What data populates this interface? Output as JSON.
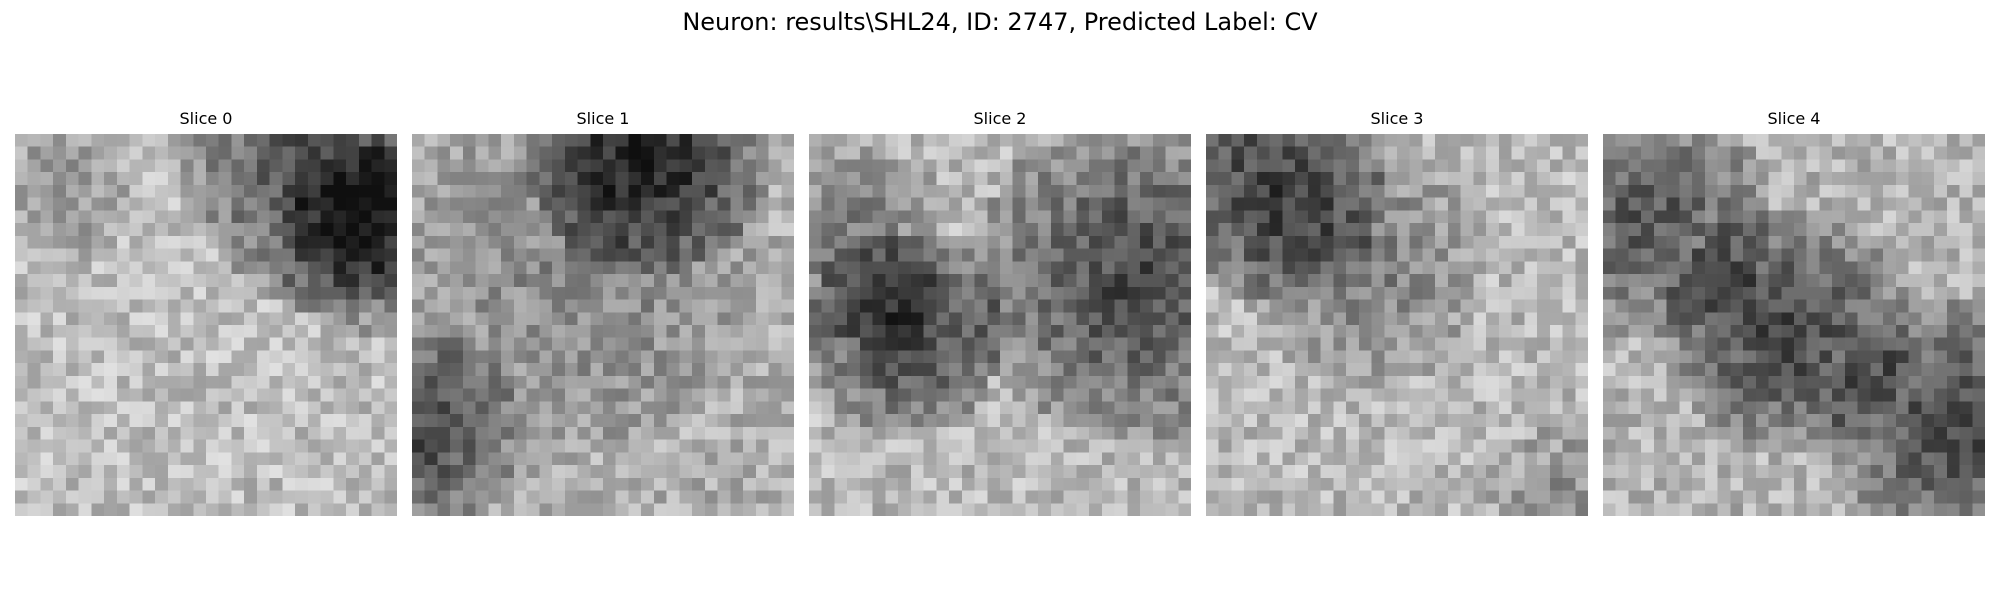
{
  "figure": {
    "title": "Neuron: results\\SHL24, ID: 2747, Predicted Label: CV",
    "colormap": "gray",
    "grid": false,
    "axes_visible": false,
    "slices": [
      {
        "label": "Slice 0"
      },
      {
        "label": "Slice 1"
      },
      {
        "label": "Slice 2"
      },
      {
        "label": "Slice 3"
      },
      {
        "label": "Slice 4"
      }
    ]
  }
}
